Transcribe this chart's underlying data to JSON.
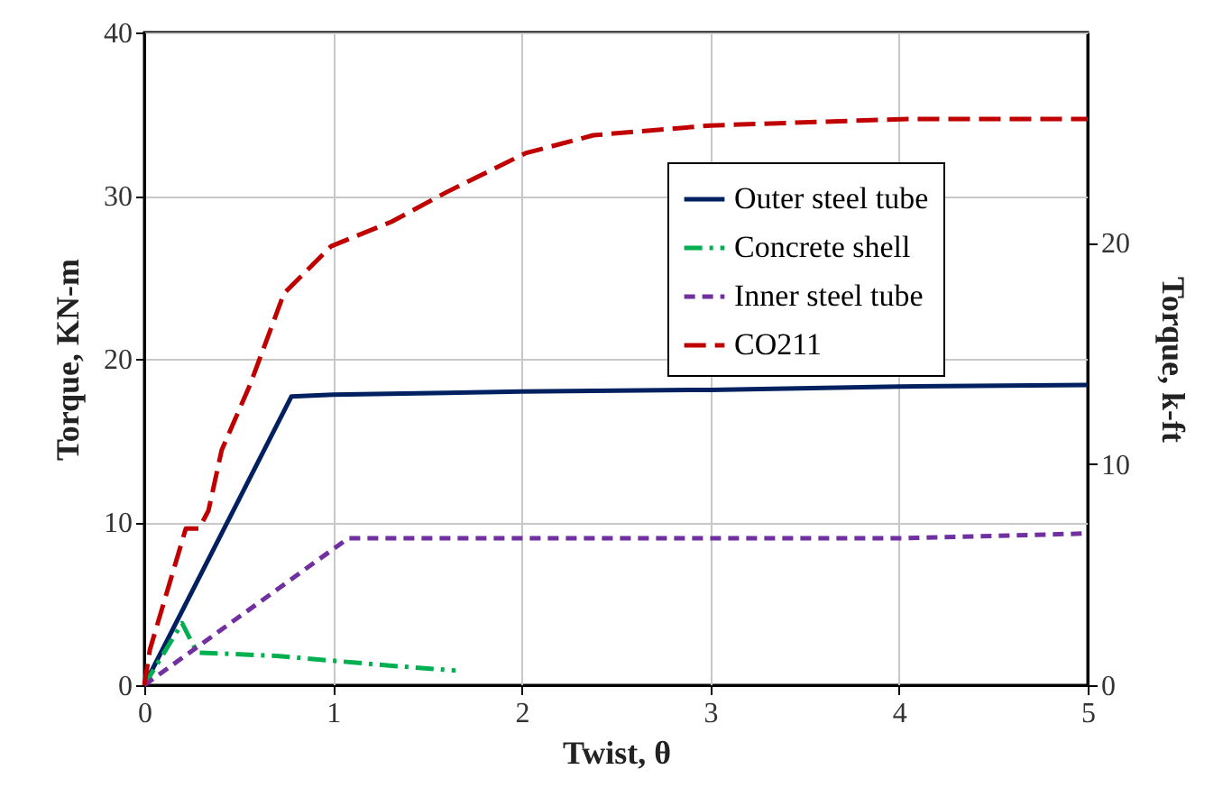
{
  "chart_data": {
    "type": "line",
    "xlabel": "Twist, θ",
    "ylabel": "Torque,  KN-m",
    "y2label": "Torque,  k-ft",
    "xlim": [
      0,
      5
    ],
    "xticks": [
      0,
      1,
      2,
      3,
      4,
      5
    ],
    "ylim": [
      0,
      40
    ],
    "yticks": [
      0,
      10,
      20,
      30,
      40
    ],
    "y2lim": [
      0,
      29.5
    ],
    "y2ticks": [
      0,
      10,
      20
    ],
    "grid": true,
    "legend": "top right",
    "series": [
      {
        "name": "Outer steel tube",
        "color": "#002060",
        "line_style": "solid",
        "x": [
          0,
          0.78,
          1.0,
          2,
          3,
          4,
          5
        ],
        "values": [
          0,
          17.7,
          17.8,
          18,
          18.1,
          18.3,
          18.4
        ]
      },
      {
        "name": "Concrete shell",
        "color": "#00b050",
        "line_style": "dashdot",
        "x": [
          0,
          0.2,
          0.28,
          0.7,
          1.0,
          1.3,
          1.65
        ],
        "values": [
          0,
          3.8,
          2,
          1.8,
          1.5,
          1.2,
          0.9
        ]
      },
      {
        "name": "Inner steel tube",
        "color": "#7030a0",
        "line_style": "dashed",
        "x": [
          0,
          1.08,
          2,
          3,
          4,
          5
        ],
        "values": [
          0,
          9.0,
          9.0,
          9.0,
          9.0,
          9.3
        ]
      },
      {
        "name": "CO211",
        "color": "#c00000",
        "line_style": "longdash",
        "x": [
          0,
          0.03,
          0.22,
          0.29,
          0.34,
          0.41,
          0.56,
          0.74,
          0.99,
          1.31,
          1.6,
          2.02,
          2.38,
          3.0,
          4.05,
          5.0
        ],
        "values": [
          0,
          2.2,
          9.6,
          9.6,
          10.7,
          14.4,
          18.4,
          24,
          26.9,
          28.4,
          30.2,
          32.6,
          33.7,
          34.3,
          34.7,
          34.7
        ]
      }
    ]
  }
}
